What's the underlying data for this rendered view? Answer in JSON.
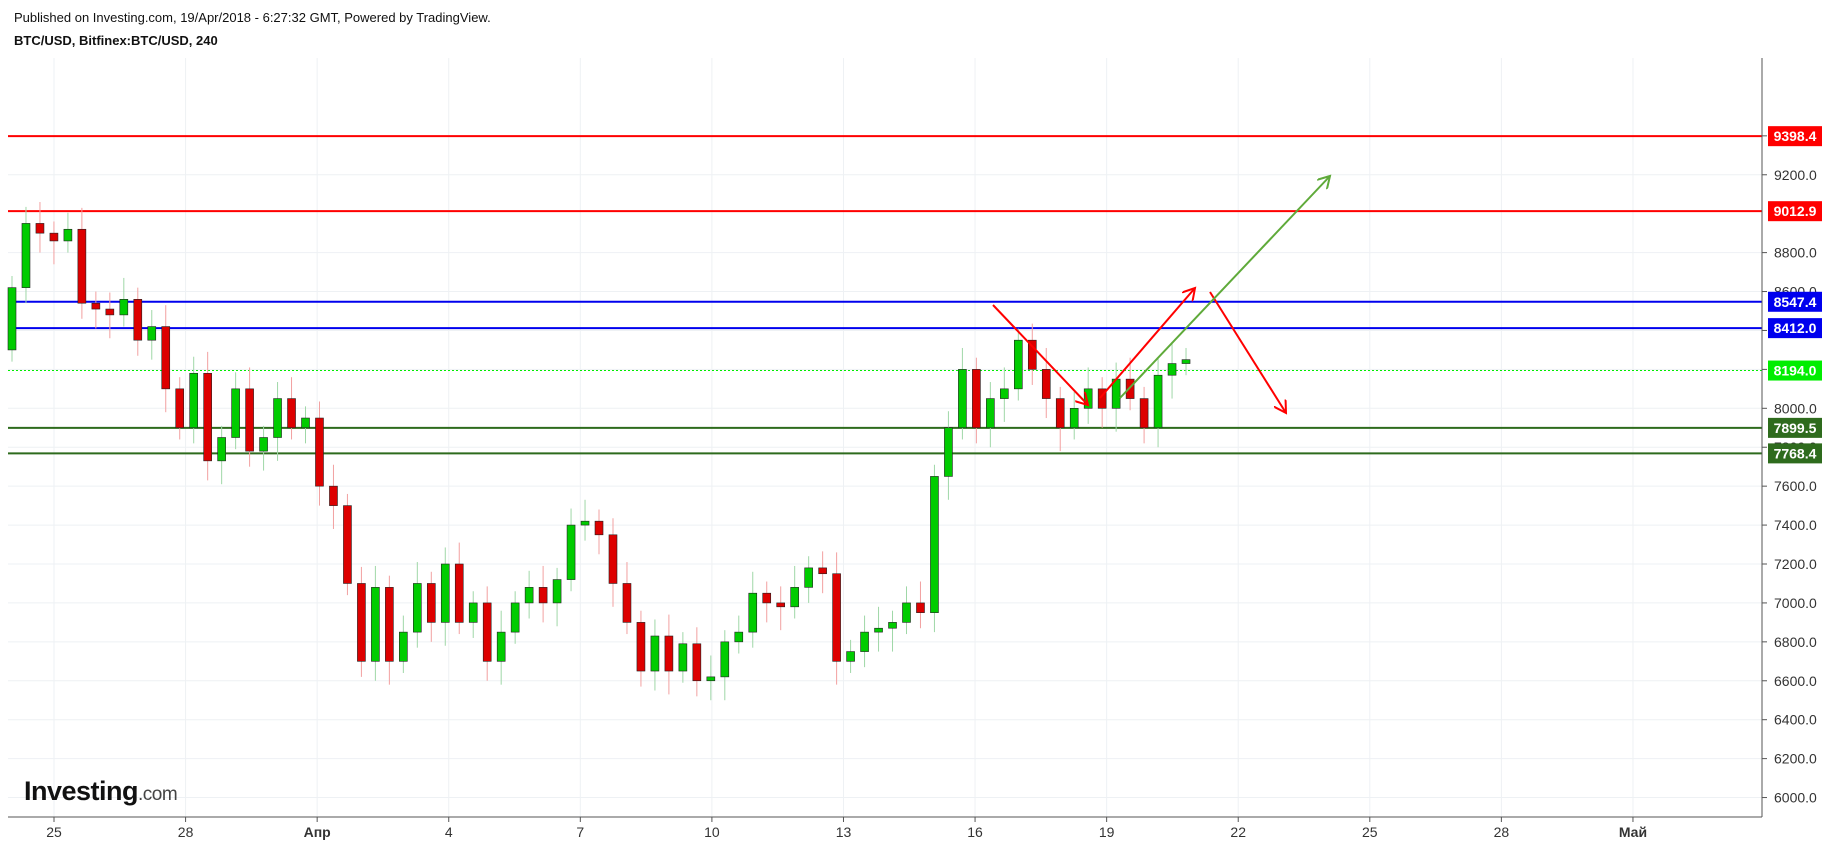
{
  "header": {
    "published": "Published on Investing.com, 19/Apr/2018 - 6:27:32 GMT, Powered by TradingView.",
    "symbol": "BTC/USD, Bitfinex:BTC/USD, 240"
  },
  "logo": {
    "name": "Investing",
    "suffix": ".com"
  },
  "colors": {
    "up": "#00cc00",
    "down": "#dd0000",
    "resistance": "#ff0000",
    "blue_level": "#0000ee",
    "support": "#2e6b1d",
    "current": "#00ee00",
    "green_arrow": "#5faa3a",
    "red_arrow": "#ff0000"
  },
  "chart_data": {
    "type": "candlestick",
    "timeframe": "240",
    "ylim": [
      5900,
      9800
    ],
    "yticks": [
      6000,
      6200,
      6400,
      6600,
      6800,
      7000,
      7200,
      7400,
      7600,
      7800,
      8000,
      8200,
      8400,
      8600,
      8800,
      9200,
      9400
    ],
    "xlim": [
      0,
      72
    ],
    "xticks": [
      {
        "t": 1.0,
        "label": "25"
      },
      {
        "t": 7.0,
        "label": "28"
      },
      {
        "t": 13.0,
        "label": "Апр",
        "bold": true
      },
      {
        "t": 19.0,
        "label": "4"
      },
      {
        "t": 25.0,
        "label": "7"
      },
      {
        "t": 31.0,
        "label": "10"
      },
      {
        "t": 37.0,
        "label": "13"
      },
      {
        "t": 43.0,
        "label": "16"
      },
      {
        "t": 49.0,
        "label": "19"
      },
      {
        "t": 55.0,
        "label": "22"
      },
      {
        "t": 61.0,
        "label": "25"
      },
      {
        "t": 67.0,
        "label": "28"
      },
      {
        "t": 73.0,
        "label": "Май",
        "bold": true
      }
    ],
    "levels": [
      {
        "value": 9398.4,
        "label": "9398.4",
        "kind": "resistance"
      },
      {
        "value": 9012.9,
        "label": "9012.9",
        "kind": "resistance"
      },
      {
        "value": 8547.4,
        "label": "8547.4",
        "kind": "blue_level"
      },
      {
        "value": 8412.0,
        "label": "8412.0",
        "kind": "blue_level"
      },
      {
        "value": 8194.0,
        "label": "8194.0",
        "kind": "current"
      },
      {
        "value": 7899.5,
        "label": "7899.5",
        "kind": "support"
      },
      {
        "value": 7768.4,
        "label": "7768.4",
        "kind": "support"
      }
    ],
    "closes": [
      8620,
      8950,
      8900,
      8860,
      8920,
      8540,
      8510,
      8480,
      8560,
      8350,
      8420,
      8100,
      7900,
      8180,
      7730,
      7850,
      8100,
      7780,
      7850,
      8050,
      7900,
      7950,
      7600,
      7500,
      7100,
      6700,
      7080,
      6700,
      6850,
      7100,
      6900,
      7200,
      6900,
      7000,
      6700,
      6850,
      7000,
      7080,
      7000,
      7120,
      7400,
      7420,
      7350,
      7100,
      6900,
      6650,
      6830,
      6650,
      6790,
      6600,
      6620,
      6800,
      6850,
      7050,
      7000,
      6980,
      7080,
      7180,
      7150,
      6700,
      6750,
      6850,
      6870,
      6900,
      7000,
      6950,
      7650,
      7900,
      8200,
      7900,
      8050,
      8100,
      8350,
      8200,
      8050,
      7900,
      8000,
      8100,
      8000,
      8150,
      8050,
      7900,
      8170,
      8230,
      8250
    ]
  }
}
